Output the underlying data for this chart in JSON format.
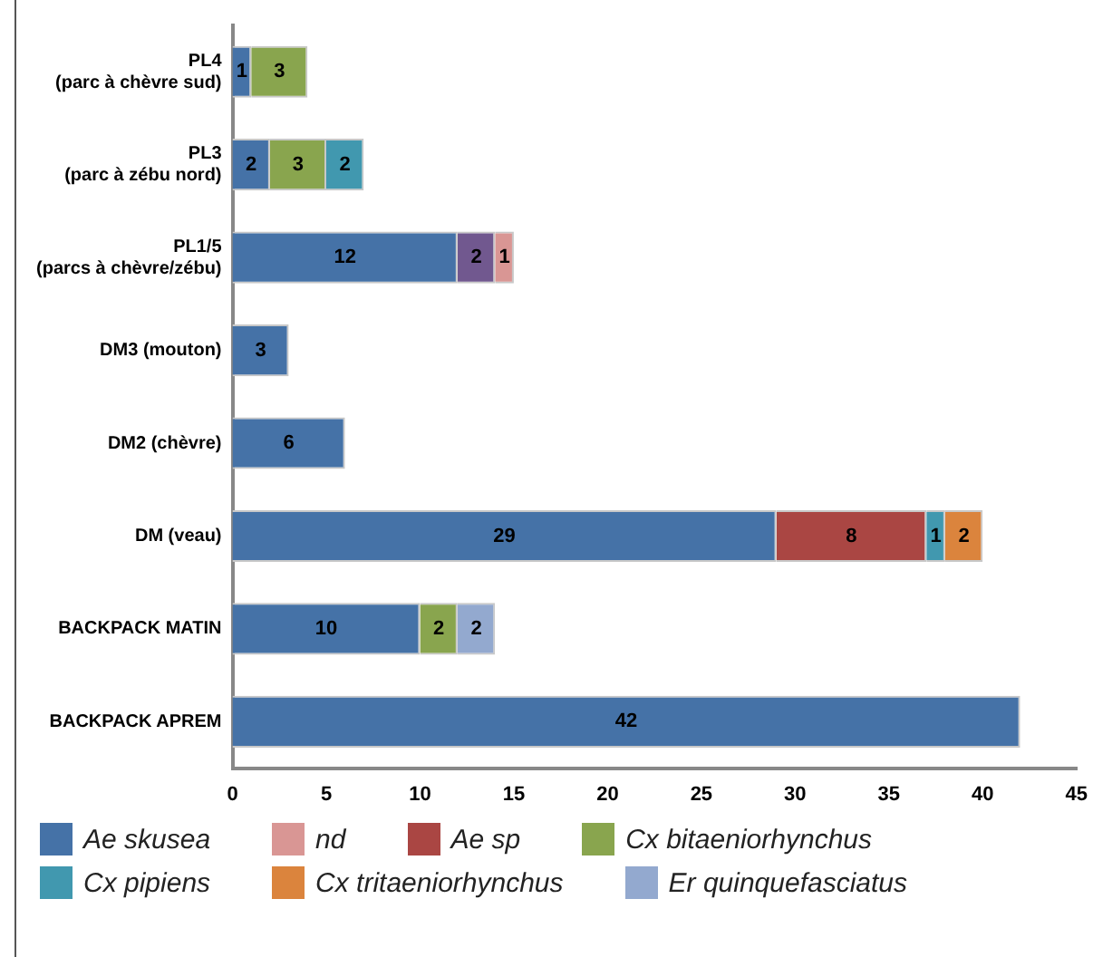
{
  "chart_data": {
    "type": "bar",
    "orientation": "horizontal",
    "stacked": true,
    "data_labels": true,
    "grid": false,
    "legend": "bottom",
    "categories": [
      "PL4\n(parc à chèvre sud)",
      "PL3\n(parc à zébu nord)",
      "PL1/5\n(parcs à chèvre/zébu)",
      "DM3 (mouton)",
      "DM2 (chèvre)",
      "DM (veau)",
      "BACKPACK MATIN",
      "BACKPACK APREM"
    ],
    "xlim": [
      0,
      45
    ],
    "xticks": [
      0,
      5,
      10,
      15,
      20,
      25,
      30,
      35,
      40,
      45
    ],
    "series": [
      {
        "name": "Ae skusea",
        "color": "#4572a7",
        "values": [
          1,
          2,
          12,
          3,
          6,
          29,
          10,
          42
        ]
      },
      {
        "color": "#71588f",
        "values": [
          null,
          null,
          2,
          null,
          null,
          null,
          null,
          null
        ]
      },
      {
        "name": "nd",
        "color": "#d99694",
        "values": [
          null,
          null,
          1,
          null,
          null,
          null,
          null,
          null
        ]
      },
      {
        "name": "Ae sp",
        "color": "#aa4643",
        "values": [
          null,
          null,
          null,
          null,
          null,
          8,
          null,
          null
        ]
      },
      {
        "name": "Cx bitaeniorhynchus",
        "color": "#89a54e",
        "values": [
          3,
          3,
          null,
          null,
          null,
          null,
          2,
          null
        ]
      },
      {
        "name": "Cx pipiens",
        "color": "#4198af",
        "values": [
          null,
          2,
          null,
          null,
          null,
          1,
          null,
          null
        ]
      },
      {
        "name": "Cx tritaeniorhynchus",
        "color": "#db843d",
        "values": [
          null,
          null,
          null,
          null,
          null,
          2,
          null,
          null
        ]
      },
      {
        "name": "Er quinquefasciatus",
        "color": "#93a9cf",
        "values": [
          null,
          null,
          null,
          null,
          null,
          null,
          2,
          null
        ]
      }
    ]
  }
}
